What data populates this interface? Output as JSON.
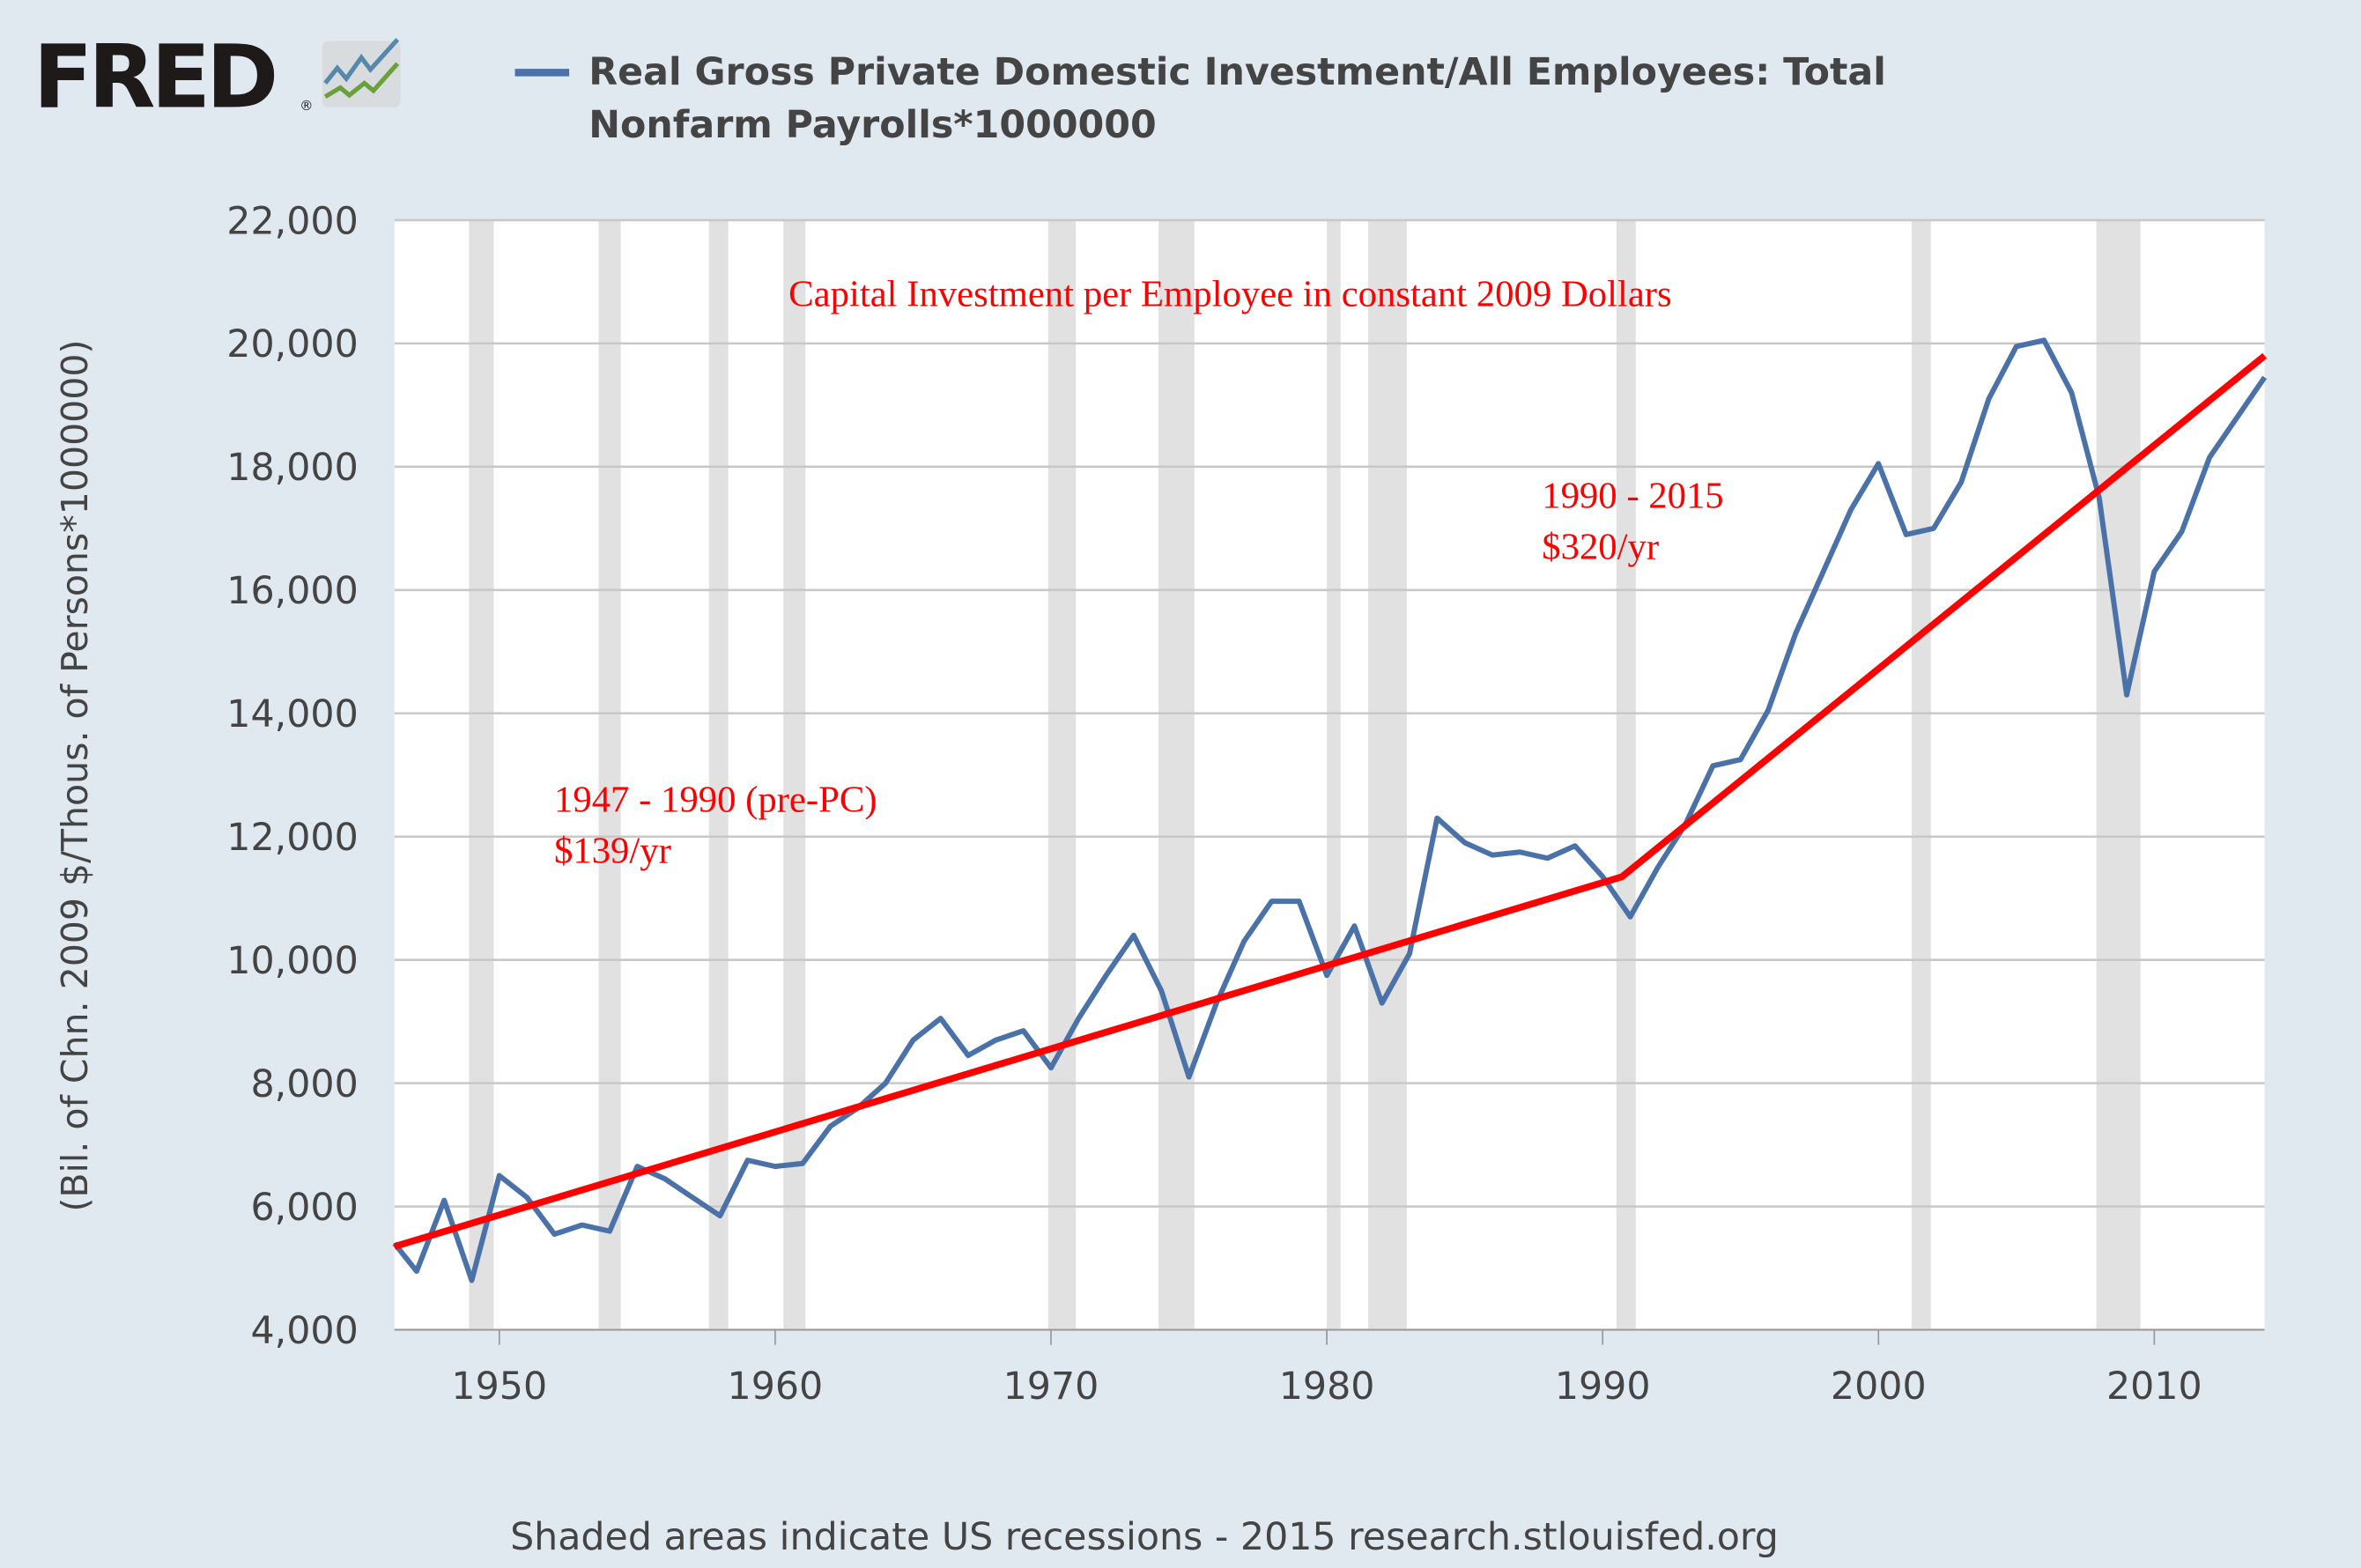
{
  "header": {
    "logo_text": "FRED",
    "logo_mark": "®",
    "legend_line1": "Real Gross Private Domestic Investment/All Employees: Total",
    "legend_line2": "Nonfarm Payrolls*1000000"
  },
  "footer": {
    "note": "Shaded areas indicate US recessions - 2015 research.stlouisfed.org"
  },
  "annotations": {
    "title": "Capital Investment per Employee in constant 2009 Dollars",
    "period1_line1": "1947 - 1990 (pre-PC)",
    "period1_line2": "$139/yr",
    "period2_line1": "1990 - 2015",
    "period2_line2": "$320/yr"
  },
  "colors": {
    "series": "#4a72a8",
    "trend": "#ff0000",
    "recession": "#e1e1e1",
    "grid": "#c8c8c8",
    "background": "#e1e9f0",
    "annotation": "#ff0000"
  },
  "chart_data": {
    "type": "line",
    "ylabel": "(Bil. of Chn. 2009 $/Thous. of Persons*1000000)",
    "xlim": [
      1946.2,
      2014
    ],
    "ylim": [
      4000,
      22000
    ],
    "yticks": [
      4000,
      6000,
      8000,
      10000,
      12000,
      14000,
      16000,
      18000,
      20000,
      22000
    ],
    "ytick_labels": [
      "4,000",
      "6,000",
      "8,000",
      "10,000",
      "12,000",
      "14,000",
      "16,000",
      "18,000",
      "20,000",
      "22,000"
    ],
    "xticks": [
      1950,
      1960,
      1970,
      1980,
      1990,
      2000,
      2010
    ],
    "xtick_labels": [
      "1950",
      "1960",
      "1970",
      "1980",
      "1990",
      "2000",
      "2010"
    ],
    "grid": true,
    "series": [
      {
        "name": "Real Gross Private Domestic Investment/All Employees: Total Nonfarm Payrolls*1000000",
        "x": [
          1946.2,
          1947,
          1948,
          1949,
          1950,
          1951,
          1952,
          1953,
          1954,
          1955,
          1956,
          1957,
          1958,
          1959,
          1960,
          1961,
          1962,
          1963,
          1964,
          1965,
          1966,
          1967,
          1968,
          1969,
          1970,
          1971,
          1972,
          1973,
          1974,
          1975,
          1976,
          1977,
          1978,
          1979,
          1980,
          1981,
          1982,
          1983,
          1984,
          1985,
          1986,
          1987,
          1988,
          1989,
          1990,
          1991,
          1992,
          1993,
          1994,
          1995,
          1996,
          1997,
          1998,
          1999,
          2000,
          2001,
          2002,
          2003,
          2004,
          2005,
          2006,
          2007,
          2008,
          2009,
          2010,
          2011,
          2012,
          2013,
          2014
        ],
        "values": [
          5400,
          4950,
          6100,
          4800,
          6500,
          6150,
          5550,
          5700,
          5600,
          6650,
          6450,
          6150,
          5850,
          6750,
          6650,
          6700,
          7300,
          7600,
          8000,
          8700,
          9050,
          8450,
          8700,
          8850,
          8250,
          9050,
          9750,
          10400,
          9500,
          8100,
          9300,
          10300,
          10950,
          10950,
          9750,
          10550,
          9300,
          10100,
          12300,
          11900,
          11700,
          11750,
          11650,
          11850,
          11350,
          10700,
          11500,
          12200,
          13150,
          13250,
          14050,
          15300,
          16300,
          17300,
          18050,
          16900,
          17000,
          17750,
          19100,
          19950,
          20050,
          19200,
          17500,
          14300,
          16300,
          16950,
          18150,
          18800,
          19450
        ]
      },
      {
        "name": "Trend",
        "x": [
          1946.2,
          1990.7,
          2014
        ],
        "values": [
          5350,
          11350,
          19800
        ]
      }
    ],
    "recessions": [
      [
        1948.9,
        1949.8
      ],
      [
        1953.6,
        1954.4
      ],
      [
        1957.6,
        1958.3
      ],
      [
        1960.3,
        1961.1
      ],
      [
        1969.9,
        1970.9
      ],
      [
        1973.9,
        1975.2
      ],
      [
        1980.0,
        1980.5
      ],
      [
        1981.5,
        1982.9
      ],
      [
        1990.5,
        1991.2
      ],
      [
        2001.2,
        2001.9
      ],
      [
        2007.9,
        2009.5
      ]
    ]
  }
}
